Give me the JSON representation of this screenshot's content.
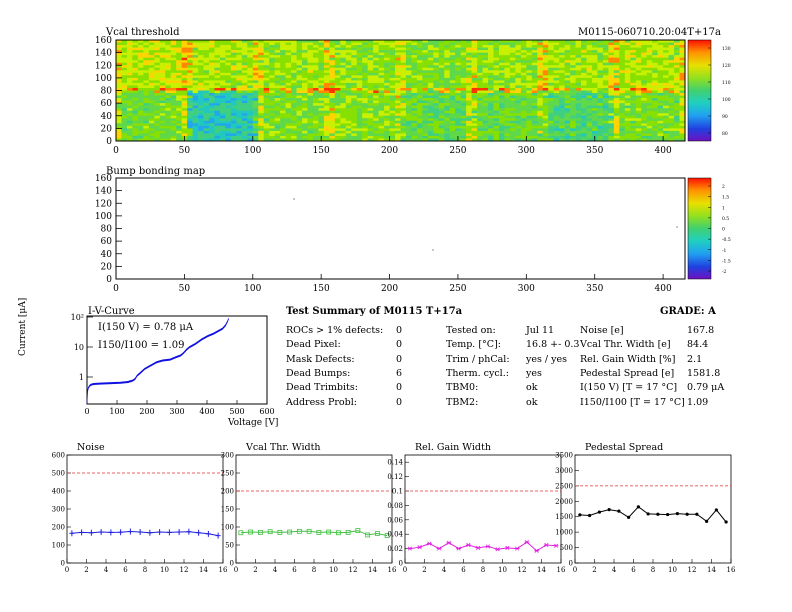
{
  "header": {
    "module_id": "M0115-060710.20:04T+17a"
  },
  "vcal_map": {
    "title": "Vcal threshold",
    "x_ticks": [
      "0",
      "50",
      "100",
      "150",
      "200",
      "250",
      "300",
      "350",
      "400"
    ],
    "y_ticks": [
      "0",
      "20",
      "40",
      "60",
      "80",
      "100",
      "120",
      "140",
      "160"
    ],
    "scale_ticks": [
      "130",
      "120",
      "110",
      "100",
      "90",
      "80"
    ],
    "colors": [
      "#ff3300",
      "#ff8800",
      "#ffd400",
      "#c8f000",
      "#88e000",
      "#5fd84a",
      "#3fcf80",
      "#20c8c0",
      "#20a8e8",
      "#2070e0",
      "#3030d0",
      "#6020c0"
    ]
  },
  "bump_map": {
    "title": "Bump bonding map",
    "x_ticks": [
      "0",
      "50",
      "100",
      "150",
      "200",
      "250",
      "300",
      "350",
      "400"
    ],
    "y_ticks": [
      "0",
      "20",
      "40",
      "60",
      "80",
      "100",
      "120",
      "140",
      "160"
    ],
    "scale_ticks": [
      "2",
      "1.5",
      "1",
      "0.5",
      "0",
      "-0.5",
      "-1",
      "-1.5",
      "-2"
    ]
  },
  "iv_curve": {
    "title": "I-V-Curve",
    "xlabel": "Voltage [V]",
    "ylabel": "Current [μA]",
    "x_ticks": [
      "0",
      "100",
      "200",
      "300",
      "400",
      "500",
      "600"
    ],
    "y_ticks": [
      "1",
      "10",
      "10²"
    ],
    "annotation1": "I(150 V) = 0.78 μA",
    "annotation2": "I150/I100 = 1.09"
  },
  "summary": {
    "title": "Test Summary of M0115    T+17a",
    "grade": "GRADE:  A",
    "left": [
      {
        "label": "ROCs > 1% defects:",
        "value": "0"
      },
      {
        "label": "Dead Pixel:",
        "value": "0"
      },
      {
        "label": "Mask Defects:",
        "value": "0"
      },
      {
        "label": "Dead Bumps:",
        "value": "6"
      },
      {
        "label": "Dead Trimbits:",
        "value": "0"
      },
      {
        "label": "Address Probl:",
        "value": "0"
      }
    ],
    "middle": [
      {
        "label": "Tested on:",
        "value": "Jul 11"
      },
      {
        "label": "Temp. [°C]:",
        "value": "16.8 +- 0.3"
      },
      {
        "label": "Trim / phCal:",
        "value": "yes / yes"
      },
      {
        "label": "Therm. cycl.:",
        "value": "yes"
      },
      {
        "label": "TBM0:",
        "value": "ok"
      },
      {
        "label": "TBM2:",
        "value": "ok"
      }
    ],
    "right": [
      {
        "label": "Noise [e]",
        "value": "167.8"
      },
      {
        "label": "Vcal Thr. Width [e]",
        "value": "84.4"
      },
      {
        "label": "Rel. Gain Width [%]",
        "value": "2.1"
      },
      {
        "label": "Pedestal Spread [e]",
        "value": "1581.8"
      },
      {
        "label": "I(150 V) [T = 17 °C]",
        "value": "0.79 μA"
      },
      {
        "label": "I150/I100   [T = 17 °C]",
        "value": "1.09"
      }
    ]
  },
  "chart_data": [
    {
      "type": "line",
      "title": "Noise",
      "x": [
        0,
        1,
        2,
        3,
        4,
        5,
        6,
        7,
        8,
        9,
        10,
        11,
        12,
        13,
        14,
        15
      ],
      "values": [
        165,
        170,
        168,
        172,
        170,
        171,
        175,
        172,
        168,
        172,
        170,
        172,
        174,
        168,
        162,
        152
      ],
      "xlim": [
        0,
        16
      ],
      "ylim": [
        0,
        600
      ],
      "x_ticks": [
        "0",
        "2",
        "4",
        "6",
        "8",
        "10",
        "12",
        "14",
        "16"
      ],
      "y_ticks": [
        "0",
        "100",
        "200",
        "300",
        "400",
        "500",
        "600"
      ],
      "threshold": 500,
      "color": "#2020e0",
      "marker": "cross"
    },
    {
      "type": "line",
      "title": "Vcal Thr. Width",
      "x": [
        0,
        1,
        2,
        3,
        4,
        5,
        6,
        7,
        8,
        9,
        10,
        11,
        12,
        13,
        14,
        15
      ],
      "values": [
        84,
        86,
        85,
        87,
        85,
        86,
        88,
        88,
        85,
        86,
        84,
        85,
        90,
        78,
        82,
        76
      ],
      "xlim": [
        0,
        16
      ],
      "ylim": [
        0,
        300
      ],
      "x_ticks": [
        "0",
        "2",
        "4",
        "6",
        "8",
        "10",
        "12",
        "14",
        "16"
      ],
      "y_ticks": [
        "0",
        "50",
        "100",
        "150",
        "200",
        "250",
        "300"
      ],
      "threshold": 200,
      "color": "#40c040",
      "marker": "square"
    },
    {
      "type": "line",
      "title": "Rel. Gain Width",
      "x": [
        0,
        1,
        2,
        3,
        4,
        5,
        6,
        7,
        8,
        9,
        10,
        11,
        12,
        13,
        14,
        15
      ],
      "values": [
        0.02,
        0.022,
        0.027,
        0.02,
        0.028,
        0.02,
        0.025,
        0.021,
        0.023,
        0.019,
        0.021,
        0.02,
        0.029,
        0.017,
        0.025,
        0.024
      ],
      "xlim": [
        0,
        16
      ],
      "ylim": [
        0,
        0.15
      ],
      "x_ticks": [
        "0",
        "2",
        "4",
        "6",
        "8",
        "10",
        "12",
        "14",
        "16"
      ],
      "y_ticks": [
        "0",
        "0.02",
        "0.04",
        "0.06",
        "0.08",
        "0.1",
        "0.12",
        "0.14"
      ],
      "threshold": 0.1,
      "color": "#e020e0",
      "marker": "star"
    },
    {
      "type": "line",
      "title": "Pedestal Spread",
      "x": [
        0,
        1,
        2,
        3,
        4,
        5,
        6,
        7,
        8,
        9,
        10,
        11,
        12,
        13,
        14,
        15
      ],
      "values": [
        1560,
        1540,
        1650,
        1730,
        1680,
        1480,
        1820,
        1590,
        1580,
        1570,
        1600,
        1580,
        1580,
        1350,
        1720,
        1330
      ],
      "xlim": [
        0,
        16
      ],
      "ylim": [
        0,
        3500
      ],
      "x_ticks": [
        "0",
        "2",
        "4",
        "6",
        "8",
        "10",
        "12",
        "14",
        "16"
      ],
      "y_ticks": [
        "0",
        "500",
        "1000",
        "1500",
        "2000",
        "2500",
        "3000",
        "3500"
      ],
      "threshold": 2500,
      "color": "#000000",
      "marker": "dot"
    }
  ]
}
